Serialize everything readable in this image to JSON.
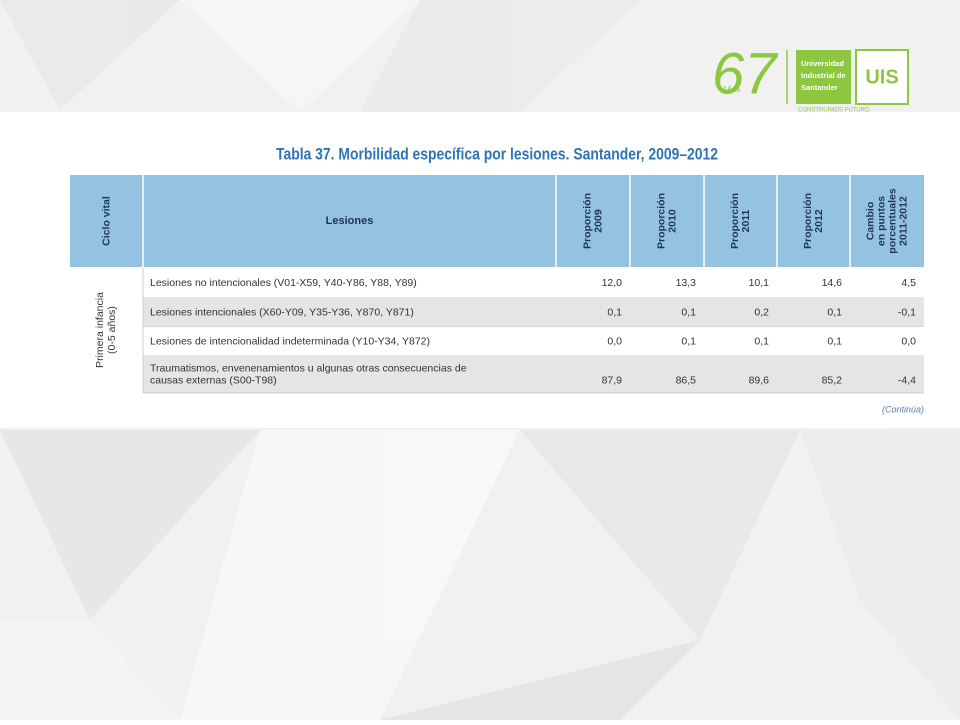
{
  "logo": {
    "years": "67",
    "years_word": "Años",
    "university": [
      "Universidad",
      "Industrial de",
      "Santander"
    ],
    "acronym": "UIS",
    "motto": "CONSTRUIMOS FUTURO"
  },
  "title": "Tabla 37. Morbilidad específica por lesiones. Santander, 2009–2012",
  "table": {
    "headers": [
      [
        "Ciclo vital"
      ],
      [
        "Lesiones"
      ],
      [
        "Proporción",
        "2009"
      ],
      [
        "Proporción",
        "2010"
      ],
      [
        "Proporción",
        "2011"
      ],
      [
        "Proporción",
        "2012"
      ],
      [
        "Cambio",
        "en puntos",
        "porcentuales",
        "2011-2012"
      ]
    ],
    "group": [
      "Primera infancia",
      "(0-5 años)"
    ],
    "rows": [
      {
        "label": [
          "Lesiones no intencionales (V01-X59, Y40-Y86, Y88, Y89)"
        ],
        "values": [
          "12,0",
          "13,3",
          "10,1",
          "14,6",
          "4,5"
        ]
      },
      {
        "label": [
          "Lesiones intencionales (X60-Y09, Y35-Y36, Y870, Y871)"
        ],
        "values": [
          "0,1",
          "0,1",
          "0,2",
          "0,1",
          "-0,1"
        ]
      },
      {
        "label": [
          "Lesiones de intencionalidad indeterminada (Y10-Y34, Y872)"
        ],
        "values": [
          "0,0",
          "0,1",
          "0,1",
          "0,1",
          "0,0"
        ]
      },
      {
        "label": [
          "Traumatismos, envenenamientos u algunas otras consecuencias de",
          "causas externas (S00-T98)"
        ],
        "values": [
          "87,9",
          "86,5",
          "89,6",
          "85,2",
          "-4,4"
        ]
      }
    ]
  },
  "note": "(Continúa)"
}
